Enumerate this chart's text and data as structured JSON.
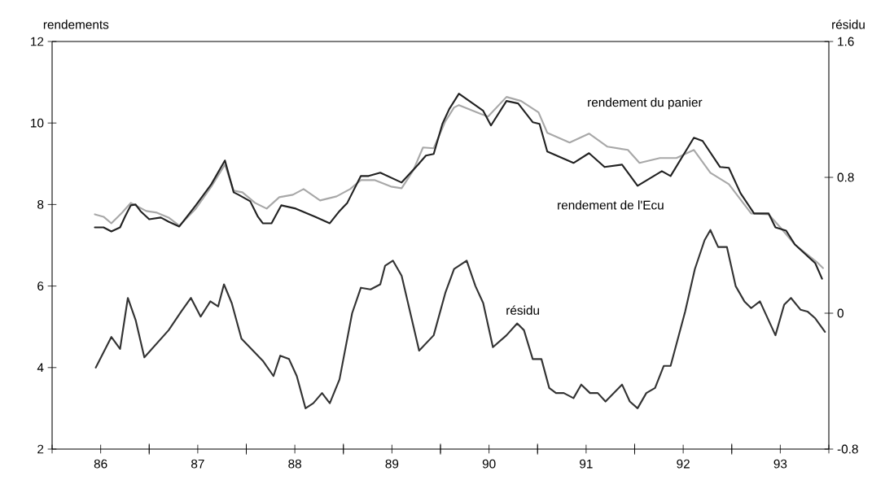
{
  "chart_data": {
    "type": "line",
    "ylabel": "rendements",
    "y2label": "résidu",
    "xlim": [
      85.5,
      93.5
    ],
    "xticks": [
      86,
      {
        "value": 86.5,
        "label": null
      },
      87,
      {
        "value": 87.5,
        "label": null
      },
      88,
      {
        "value": 88.5,
        "label": null
      },
      89,
      {
        "value": 89.5,
        "label": null
      },
      90,
      {
        "value": 90.5,
        "label": null
      },
      91,
      {
        "value": 91.5,
        "label": null
      },
      92,
      {
        "value": 92.5,
        "label": null
      },
      93
    ],
    "ylim": [
      2,
      12
    ],
    "yticks": [
      2,
      4,
      6,
      8,
      10,
      12
    ],
    "y2lim": [
      -0.8,
      1.6
    ],
    "y2ticks": [
      -0.8,
      0,
      0.8,
      1.6
    ],
    "series": [
      {
        "name": "rendement du panier",
        "color": "#a8a8a8",
        "x": [
          85.94,
          86.03,
          86.11,
          86.22,
          86.31,
          86.47,
          86.58,
          86.7,
          86.81,
          86.98,
          87.14,
          87.28,
          87.37,
          87.46,
          87.59,
          87.71,
          87.84,
          87.98,
          88.09,
          88.26,
          88.43,
          88.57,
          88.68,
          88.82,
          88.99,
          89.1,
          89.22,
          89.32,
          89.43,
          89.55,
          89.64,
          89.69,
          89.92,
          89.99,
          90.18,
          90.33,
          90.51,
          90.6,
          90.83,
          91.03,
          91.22,
          91.43,
          91.55,
          91.76,
          91.93,
          92.11,
          92.28,
          92.47,
          92.7,
          92.88,
          93.0,
          93.15,
          93.38,
          93.44
        ],
        "values": [
          7.76,
          7.7,
          7.54,
          7.8,
          8.04,
          7.84,
          7.8,
          7.68,
          7.48,
          7.9,
          8.44,
          8.98,
          8.34,
          8.3,
          8.04,
          7.9,
          8.18,
          8.24,
          8.38,
          8.1,
          8.2,
          8.38,
          8.6,
          8.6,
          8.44,
          8.4,
          8.84,
          9.4,
          9.38,
          10.04,
          10.38,
          10.44,
          10.22,
          10.16,
          10.64,
          10.54,
          10.26,
          9.76,
          9.52,
          9.74,
          9.42,
          9.34,
          9.02,
          9.14,
          9.14,
          9.34,
          8.78,
          8.5,
          7.78,
          7.76,
          7.44,
          7.02,
          6.58,
          6.44
        ]
      },
      {
        "name": "rendement de l'Ecu",
        "color": "#222222",
        "x": [
          85.94,
          86.03,
          86.11,
          86.2,
          86.25,
          86.31,
          86.36,
          86.41,
          86.5,
          86.62,
          86.7,
          86.81,
          86.98,
          87.14,
          87.28,
          87.37,
          87.42,
          87.54,
          87.62,
          87.67,
          87.76,
          87.86,
          88.01,
          88.21,
          88.36,
          88.46,
          88.54,
          88.68,
          88.76,
          88.88,
          89.1,
          89.27,
          89.35,
          89.43,
          89.52,
          89.59,
          89.69,
          89.94,
          90.02,
          90.18,
          90.3,
          90.45,
          90.52,
          90.6,
          90.87,
          91.03,
          91.19,
          91.37,
          91.53,
          91.78,
          91.87,
          92.11,
          92.2,
          92.38,
          92.47,
          92.59,
          92.73,
          92.88,
          92.95,
          93.06,
          93.15,
          93.36,
          93.43
        ],
        "values": [
          7.44,
          7.44,
          7.34,
          7.44,
          7.7,
          7.98,
          8.0,
          7.84,
          7.64,
          7.68,
          7.58,
          7.46,
          7.98,
          8.5,
          9.08,
          8.3,
          8.24,
          8.08,
          7.7,
          7.54,
          7.54,
          7.98,
          7.9,
          7.7,
          7.54,
          7.84,
          8.04,
          8.7,
          8.7,
          8.78,
          8.54,
          8.98,
          9.2,
          9.24,
          9.98,
          10.34,
          10.72,
          10.3,
          9.94,
          10.54,
          10.48,
          10.02,
          9.98,
          9.3,
          9.02,
          9.26,
          8.92,
          8.98,
          8.46,
          8.82,
          8.7,
          9.64,
          9.56,
          8.92,
          8.9,
          8.28,
          7.78,
          7.78,
          7.44,
          7.36,
          7.02,
          6.56,
          6.18
        ]
      },
      {
        "name": "résidu",
        "color": "#333333",
        "axis": "y2",
        "x": [
          85.95,
          86.11,
          86.2,
          86.28,
          86.36,
          86.45,
          86.7,
          86.83,
          86.93,
          87.03,
          87.13,
          87.21,
          87.27,
          87.35,
          87.45,
          87.67,
          87.78,
          87.85,
          87.94,
          88.02,
          88.11,
          88.19,
          88.28,
          88.36,
          88.46,
          88.59,
          88.68,
          88.78,
          88.88,
          88.93,
          89.01,
          89.1,
          89.28,
          89.43,
          89.55,
          89.64,
          89.77,
          89.86,
          89.94,
          90.04,
          90.18,
          90.29,
          90.36,
          90.45,
          90.54,
          90.62,
          90.69,
          90.77,
          90.87,
          90.95,
          91.04,
          91.12,
          91.2,
          91.37,
          91.45,
          91.53,
          91.62,
          91.71,
          91.8,
          91.87,
          92.02,
          92.12,
          92.22,
          92.28,
          92.36,
          92.45,
          92.54,
          92.63,
          92.7,
          92.79,
          92.95,
          93.04,
          93.11,
          93.21,
          93.28,
          93.36,
          93.46
        ],
        "values": [
          -0.32,
          -0.14,
          -0.21,
          0.09,
          -0.04,
          -0.26,
          -0.1,
          0.01,
          0.09,
          -0.02,
          0.07,
          0.04,
          0.17,
          0.06,
          -0.15,
          -0.28,
          -0.37,
          -0.25,
          -0.27,
          -0.37,
          -0.56,
          -0.53,
          -0.47,
          -0.53,
          -0.39,
          0.0,
          0.15,
          0.14,
          0.17,
          0.28,
          0.31,
          0.22,
          -0.22,
          -0.13,
          0.12,
          0.26,
          0.31,
          0.16,
          0.06,
          -0.2,
          -0.13,
          -0.06,
          -0.1,
          -0.27,
          -0.27,
          -0.44,
          -0.47,
          -0.47,
          -0.5,
          -0.42,
          -0.47,
          -0.47,
          -0.52,
          -0.42,
          -0.52,
          -0.56,
          -0.47,
          -0.44,
          -0.31,
          -0.31,
          0.01,
          0.26,
          0.43,
          0.49,
          0.39,
          0.39,
          0.16,
          0.07,
          0.03,
          0.07,
          -0.13,
          0.05,
          0.09,
          0.02,
          0.01,
          -0.03,
          -0.11
        ]
      }
    ]
  }
}
